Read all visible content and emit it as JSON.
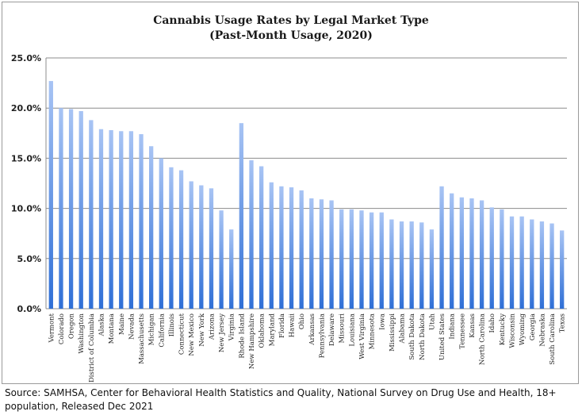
{
  "source_note": "Source: SAMHSA, Center for Behavioral Health Statistics and Quality, National Survey on Drug Use and Health, 18+ population, Released Dec 2021",
  "colors": {
    "bar_top": "#a8c4f4",
    "bar_bottom": "#2f6fd6",
    "grid": "#8c8c8c"
  },
  "chart_data": {
    "type": "bar",
    "title": "Cannabis Usage Rates by Legal Market Type",
    "subtitle": "(Past-Month Usage, 2020)",
    "ylim": [
      0,
      0.25
    ],
    "yticks": [
      0,
      0.05,
      0.1,
      0.15,
      0.2,
      0.25
    ],
    "ytick_labels": [
      "0.0%",
      "5.0%",
      "10.0%",
      "15.0%",
      "20.0%",
      "25.0%"
    ],
    "grid": true,
    "categories": [
      "Vermont",
      "Colorado",
      "Oregon",
      "Washington",
      "District of Columbia",
      "Alaska",
      "Montana",
      "Maine",
      "Nevada",
      "Massachusetts",
      "Michigan",
      "California",
      "Illinois",
      "Connecticut",
      "New Mexico",
      "New York",
      "Arizona",
      "New Jersey",
      "Virginia",
      "Rhode Island",
      "New Hampshire",
      "Oklahoma",
      "Maryland",
      "Florida",
      "Hawaii",
      "Ohio",
      "Arkansas",
      "Pennsylvania",
      "Delaware",
      "Missouri",
      "Louisiana",
      "West Virginia",
      "Minnesota",
      "Iowa",
      "Mississippi",
      "Alabama",
      "South Dakota",
      "North Dakota",
      "Utah",
      "United States",
      "Indiana",
      "Tennessee",
      "Kansas",
      "North Carolina",
      "Idaho",
      "Kentucky",
      "Wisconsin",
      "Wyoming",
      "Georgia",
      "Nebraska",
      "South Carolina",
      "Texas"
    ],
    "values": [
      0.227,
      0.2,
      0.199,
      0.197,
      0.188,
      0.179,
      0.178,
      0.177,
      0.177,
      0.174,
      0.162,
      0.15,
      0.141,
      0.138,
      0.127,
      0.123,
      0.12,
      0.098,
      0.079,
      0.185,
      0.148,
      0.142,
      0.126,
      0.122,
      0.121,
      0.118,
      0.11,
      0.109,
      0.108,
      0.099,
      0.099,
      0.098,
      0.096,
      0.096,
      0.089,
      0.087,
      0.087,
      0.086,
      0.079,
      0.122,
      0.115,
      0.111,
      0.11,
      0.108,
      0.101,
      0.099,
      0.092,
      0.092,
      0.089,
      0.087,
      0.085,
      0.078
    ]
  }
}
